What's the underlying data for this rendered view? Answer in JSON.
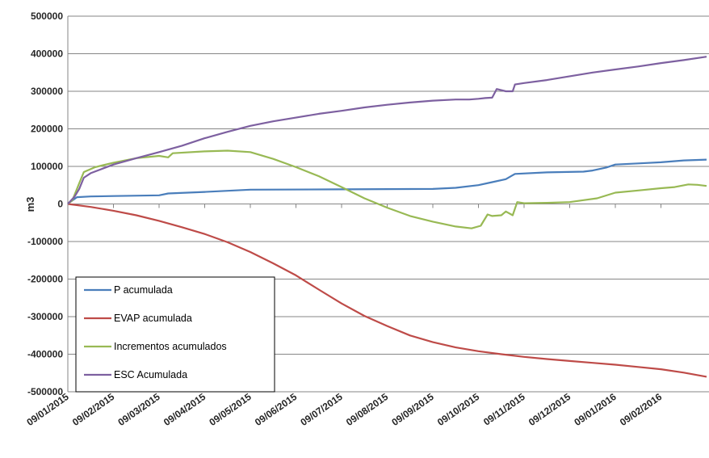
{
  "chart_data": {
    "type": "line",
    "title": "",
    "xlabel": "",
    "ylabel": "m3",
    "ylim": [
      -500000,
      500000
    ],
    "yticks": [
      500000,
      400000,
      300000,
      200000,
      100000,
      0,
      -100000,
      -200000,
      -300000,
      -400000,
      -500000
    ],
    "xticks": [
      "09/01/2015",
      "09/02/2015",
      "09/03/2015",
      "09/04/2015",
      "09/05/2015",
      "09/06/2015",
      "09/07/2015",
      "09/08/2015",
      "09/09/2015",
      "09/10/2015",
      "09/11/2015",
      "09/12/2015",
      "09/01/2016",
      "09/02/2016"
    ],
    "grid": true,
    "legend_position": "bottom-left",
    "series": [
      {
        "name": "P acumulada",
        "color": "#4a7ebb",
        "points": [
          [
            0,
            0
          ],
          [
            0.05,
            5000
          ],
          [
            0.2,
            18000
          ],
          [
            0.5,
            20000
          ],
          [
            1.0,
            21000
          ],
          [
            2.0,
            23000
          ],
          [
            2.2,
            28000
          ],
          [
            3.0,
            32000
          ],
          [
            4.0,
            38000
          ],
          [
            6.0,
            39000
          ],
          [
            8.0,
            40000
          ],
          [
            8.5,
            43000
          ],
          [
            9.0,
            50000
          ],
          [
            9.3,
            58000
          ],
          [
            9.6,
            66000
          ],
          [
            9.8,
            80000
          ],
          [
            10.5,
            84000
          ],
          [
            11.3,
            86000
          ],
          [
            11.5,
            89000
          ],
          [
            11.8,
            97000
          ],
          [
            12.0,
            105000
          ],
          [
            12.5,
            108000
          ],
          [
            13.0,
            111000
          ],
          [
            13.5,
            116000
          ],
          [
            14.0,
            118000
          ]
        ]
      },
      {
        "name": "EVAP acumulada",
        "color": "#be4b48",
        "points": [
          [
            0,
            0
          ],
          [
            0.5,
            -8000
          ],
          [
            1.0,
            -18000
          ],
          [
            1.5,
            -30000
          ],
          [
            2.0,
            -45000
          ],
          [
            2.5,
            -62000
          ],
          [
            3.0,
            -80000
          ],
          [
            3.5,
            -102000
          ],
          [
            4.0,
            -128000
          ],
          [
            4.5,
            -158000
          ],
          [
            5.0,
            -190000
          ],
          [
            5.5,
            -228000
          ],
          [
            6.0,
            -265000
          ],
          [
            6.5,
            -298000
          ],
          [
            7.0,
            -325000
          ],
          [
            7.5,
            -350000
          ],
          [
            8.0,
            -368000
          ],
          [
            8.5,
            -382000
          ],
          [
            9.0,
            -392000
          ],
          [
            9.5,
            -400000
          ],
          [
            10.0,
            -407000
          ],
          [
            10.5,
            -413000
          ],
          [
            11.0,
            -418000
          ],
          [
            11.5,
            -423000
          ],
          [
            12.0,
            -428000
          ],
          [
            12.5,
            -434000
          ],
          [
            13.0,
            -440000
          ],
          [
            13.5,
            -449000
          ],
          [
            14.0,
            -460000
          ]
        ]
      },
      {
        "name": "Incrementos acumulados",
        "color": "#98b954",
        "points": [
          [
            0,
            0
          ],
          [
            0.1,
            10000
          ],
          [
            0.25,
            55000
          ],
          [
            0.35,
            85000
          ],
          [
            0.6,
            98000
          ],
          [
            1.0,
            110000
          ],
          [
            1.5,
            122000
          ],
          [
            2.0,
            128000
          ],
          [
            2.2,
            124000
          ],
          [
            2.3,
            135000
          ],
          [
            3.0,
            140000
          ],
          [
            3.5,
            142000
          ],
          [
            4.0,
            138000
          ],
          [
            4.5,
            120000
          ],
          [
            5.0,
            98000
          ],
          [
            5.5,
            74000
          ],
          [
            6.0,
            45000
          ],
          [
            6.5,
            15000
          ],
          [
            7.0,
            -10000
          ],
          [
            7.5,
            -32000
          ],
          [
            8.0,
            -47000
          ],
          [
            8.5,
            -60000
          ],
          [
            8.85,
            -65000
          ],
          [
            9.05,
            -58000
          ],
          [
            9.2,
            -28000
          ],
          [
            9.3,
            -32000
          ],
          [
            9.5,
            -30000
          ],
          [
            9.6,
            -20000
          ],
          [
            9.75,
            -30000
          ],
          [
            9.85,
            5000
          ],
          [
            10.0,
            2000
          ],
          [
            10.5,
            3000
          ],
          [
            11.0,
            5000
          ],
          [
            11.3,
            10000
          ],
          [
            11.6,
            15000
          ],
          [
            12.0,
            30000
          ],
          [
            12.5,
            36000
          ],
          [
            13.0,
            42000
          ],
          [
            13.3,
            45000
          ],
          [
            13.6,
            52000
          ],
          [
            13.8,
            51000
          ],
          [
            14.0,
            48000
          ]
        ]
      },
      {
        "name": "ESC Acumulada",
        "color": "#7d60a0",
        "points": [
          [
            0,
            0
          ],
          [
            0.15,
            20000
          ],
          [
            0.25,
            40000
          ],
          [
            0.35,
            70000
          ],
          [
            0.5,
            82000
          ],
          [
            1.0,
            105000
          ],
          [
            1.5,
            122000
          ],
          [
            2.0,
            138000
          ],
          [
            2.5,
            155000
          ],
          [
            3.0,
            175000
          ],
          [
            3.5,
            192000
          ],
          [
            4.0,
            208000
          ],
          [
            4.5,
            220000
          ],
          [
            5.0,
            230000
          ],
          [
            5.5,
            240000
          ],
          [
            6.0,
            248000
          ],
          [
            6.5,
            257000
          ],
          [
            7.0,
            264000
          ],
          [
            7.5,
            270000
          ],
          [
            8.0,
            275000
          ],
          [
            8.5,
            278000
          ],
          [
            8.8,
            278000
          ],
          [
            9.0,
            280000
          ],
          [
            9.15,
            282000
          ],
          [
            9.3,
            283000
          ],
          [
            9.4,
            306000
          ],
          [
            9.6,
            300000
          ],
          [
            9.75,
            300000
          ],
          [
            9.8,
            318000
          ],
          [
            10.0,
            322000
          ],
          [
            10.5,
            330000
          ],
          [
            11.0,
            340000
          ],
          [
            11.5,
            350000
          ],
          [
            12.0,
            358000
          ],
          [
            12.5,
            366000
          ],
          [
            13.0,
            375000
          ],
          [
            13.5,
            383000
          ],
          [
            14.0,
            392000
          ]
        ]
      }
    ]
  }
}
